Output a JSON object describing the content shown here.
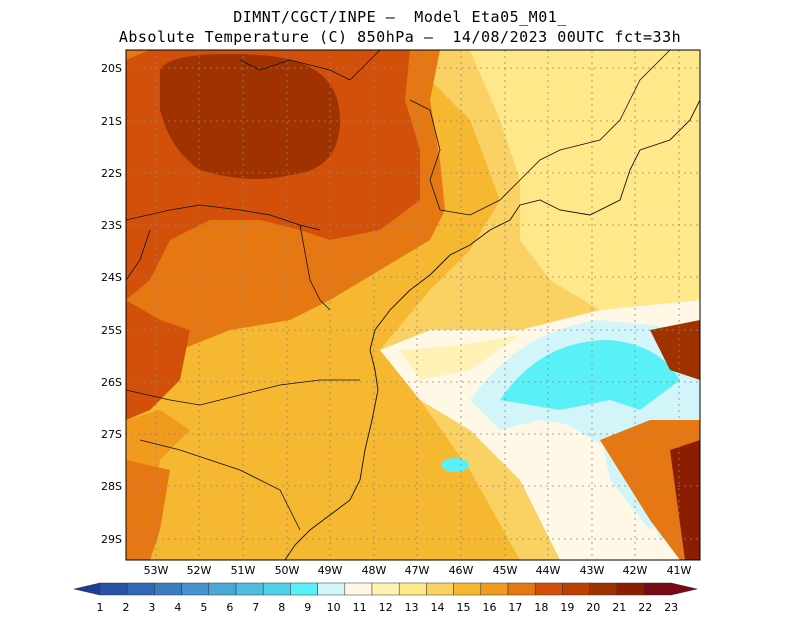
{
  "title": {
    "line1": "DIMNT/CGCT/INPE –  Model Eta05_M01_",
    "line2": "Absolute Temperature (C) 850hPa –  14/08/2023 00UTC fct=33h"
  },
  "map": {
    "lat_labels": [
      "20S",
      "21S",
      "22S",
      "23S",
      "24S",
      "25S",
      "26S",
      "27S",
      "28S",
      "29S"
    ],
    "lon_labels": [
      "53W",
      "52W",
      "51W",
      "50W",
      "49W",
      "48W",
      "47W",
      "46W",
      "45W",
      "44W",
      "43W",
      "42W",
      "41W"
    ]
  },
  "colorbar": {
    "labels": [
      "1",
      "2",
      "3",
      "4",
      "5",
      "6",
      "7",
      "8",
      "9",
      "10",
      "11",
      "12",
      "13",
      "14",
      "15",
      "16",
      "17",
      "18",
      "19",
      "20",
      "21",
      "22",
      "23"
    ],
    "colors": [
      "#1e3c96",
      "#2852a5",
      "#3366b4",
      "#3d7cc0",
      "#4592cc",
      "#4aa8d6",
      "#4fbddf",
      "#52d0e8",
      "#5af0f8",
      "#d2f5fa",
      "#fff8e6",
      "#fff2b4",
      "#ffe88a",
      "#fad264",
      "#f5b830",
      "#f09a1e",
      "#e67814",
      "#d2500a",
      "#be4000",
      "#a03200",
      "#8c1e00",
      "#780a14"
    ]
  }
}
